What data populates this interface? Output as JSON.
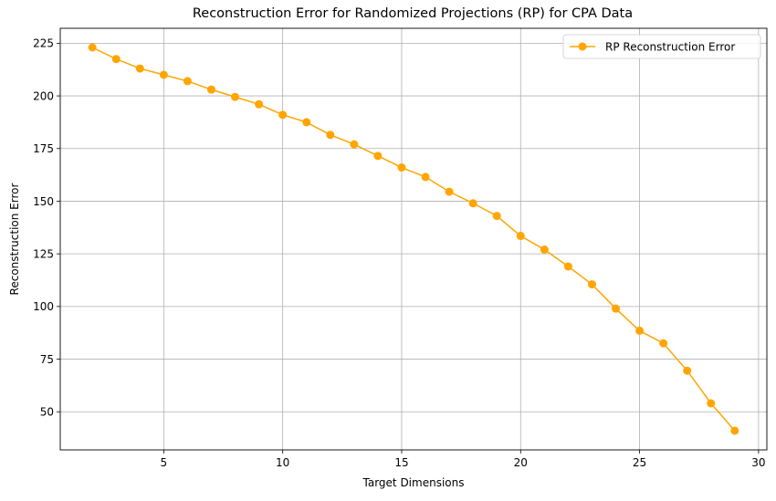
{
  "chart_data": {
    "type": "line",
    "title": "Reconstruction Error for Randomized Projections (RP) for CPA Data",
    "xlabel": "Target Dimensions",
    "ylabel": "Reconstruction Error",
    "xlim": [
      0.65,
      30.35
    ],
    "ylim": [
      31.9,
      232.1
    ],
    "xticks": [
      5,
      10,
      15,
      20,
      25,
      30
    ],
    "yticks": [
      50,
      75,
      100,
      125,
      150,
      175,
      200,
      225
    ],
    "grid": true,
    "legend_position": "top-right",
    "series": [
      {
        "name": "RP Reconstruction Error",
        "color": "#ffa500",
        "marker": "circle",
        "x": [
          2,
          3,
          4,
          5,
          6,
          7,
          8,
          9,
          10,
          11,
          12,
          13,
          14,
          15,
          16,
          17,
          18,
          19,
          20,
          21,
          22,
          23,
          24,
          25,
          26,
          27,
          28,
          29
        ],
        "y": [
          223,
          217.5,
          213,
          210,
          207,
          203,
          199.5,
          196,
          191,
          187.5,
          181.5,
          177,
          171.5,
          166,
          161.5,
          154.5,
          149,
          143,
          133.5,
          127,
          119,
          110.5,
          99,
          88.5,
          82.5,
          69.5,
          54,
          41
        ]
      }
    ]
  }
}
